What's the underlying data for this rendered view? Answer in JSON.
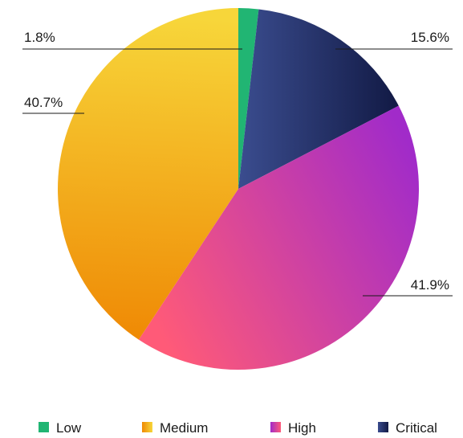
{
  "chart_data": {
    "type": "pie",
    "slices": [
      {
        "label": "Low",
        "value": 1.8,
        "display": "1.8%",
        "color": "#21b573",
        "color_end": "#21b573"
      },
      {
        "label": "Critical",
        "value": 15.6,
        "display": "15.6%",
        "color": "#3a4c8e",
        "color_end": "#121a45"
      },
      {
        "label": "High",
        "value": 41.9,
        "display": "41.9%",
        "color": "#ff5a78",
        "color_end": "#a12bc9"
      },
      {
        "label": "Medium",
        "value": 40.7,
        "display": "40.7%",
        "color": "#f7d63a",
        "color_end": "#ef8a05"
      }
    ],
    "start_angle_deg": 0,
    "direction": "clockwise",
    "legend": {
      "position": "bottom",
      "order": [
        "Low",
        "Medium",
        "High",
        "Critical"
      ]
    }
  }
}
